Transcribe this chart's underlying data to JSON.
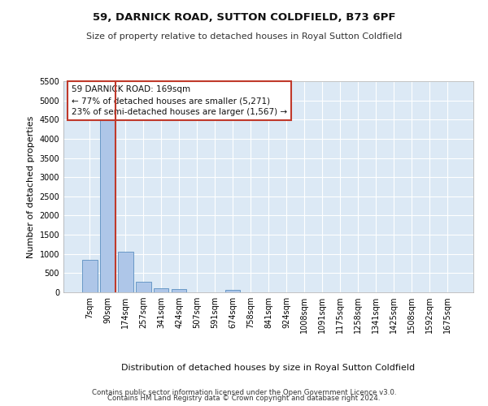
{
  "title1": "59, DARNICK ROAD, SUTTON COLDFIELD, B73 6PF",
  "title2": "Size of property relative to detached houses in Royal Sutton Coldfield",
  "xlabel": "Distribution of detached houses by size in Royal Sutton Coldfield",
  "ylabel": "Number of detached properties",
  "footer1": "Contains HM Land Registry data © Crown copyright and database right 2024.",
  "footer2": "Contains public sector information licensed under the Open Government Licence v3.0.",
  "annotation_line1": "59 DARNICK ROAD: 169sqm",
  "annotation_line2": "← 77% of detached houses are smaller (5,271)",
  "annotation_line3": "23% of semi-detached houses are larger (1,567) →",
  "bar_labels": [
    "7sqm",
    "90sqm",
    "174sqm",
    "257sqm",
    "341sqm",
    "424sqm",
    "507sqm",
    "591sqm",
    "674sqm",
    "758sqm",
    "841sqm",
    "924sqm",
    "1008sqm",
    "1091sqm",
    "1175sqm",
    "1258sqm",
    "1341sqm",
    "1425sqm",
    "1508sqm",
    "1592sqm",
    "1675sqm"
  ],
  "bar_values": [
    850,
    4600,
    1050,
    280,
    105,
    80,
    10,
    0,
    55,
    0,
    0,
    0,
    0,
    0,
    0,
    0,
    0,
    0,
    0,
    0,
    0
  ],
  "bar_color": "#aec6e8",
  "bar_edge_color": "#5a8fc0",
  "highlight_bar_index": 1,
  "highlight_color": "#c0392b",
  "ylim": [
    0,
    5500
  ],
  "yticks": [
    0,
    500,
    1000,
    1500,
    2000,
    2500,
    3000,
    3500,
    4000,
    4500,
    5000,
    5500
  ],
  "bg_color": "#dce9f5",
  "grid_color": "#ffffff",
  "annotation_box_color": "#c0392b"
}
